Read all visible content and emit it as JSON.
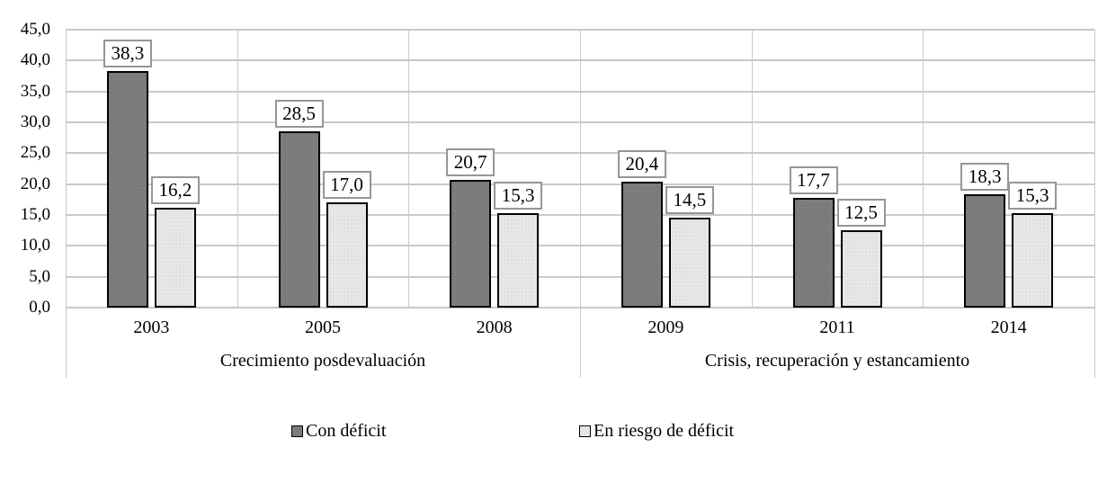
{
  "chart_data": {
    "type": "bar",
    "title": "",
    "xlabel": "",
    "ylabel": "",
    "categories": [
      "2003",
      "2005",
      "2008",
      "2009",
      "2011",
      "2014"
    ],
    "group_labels": [
      {
        "label": "Crecimiento posdevaluación",
        "start": 0,
        "end": 3
      },
      {
        "label": "Crisis, recuperación y estancamiento",
        "start": 3,
        "end": 6
      }
    ],
    "series": [
      {
        "name": "Con déficit",
        "values": [
          38.3,
          28.5,
          20.7,
          20.4,
          17.7,
          18.3
        ],
        "value_labels": [
          "38,3",
          "28,5",
          "20,7",
          "20,4",
          "17,7",
          "18,3"
        ],
        "fill": "#7d7d7d",
        "dot_color": "#6a6a6a"
      },
      {
        "name": "En riesgo de déficit",
        "values": [
          16.2,
          17.0,
          15.3,
          14.5,
          12.5,
          15.3
        ],
        "value_labels": [
          "16,2",
          "17,0",
          "15,3",
          "14,5",
          "12,5",
          "15,3"
        ],
        "fill": "#e7e7e7",
        "dot_color": "#c6c6c6"
      }
    ],
    "ylim": [
      0,
      45
    ],
    "ytick_step": 5,
    "ytick_labels": [
      "0,0",
      "5,0",
      "10,0",
      "15,0",
      "20,0",
      "25,0",
      "30,0",
      "35,0",
      "40,0",
      "45,0"
    ],
    "decimal_separator": ",",
    "grid": true,
    "legend_position": "bottom",
    "colors": {
      "gridline": "#c9c9c9",
      "bar_border": "#000000",
      "label_box_border": "#969696",
      "label_box_bg": "#ffffff",
      "text": "#000000"
    }
  }
}
